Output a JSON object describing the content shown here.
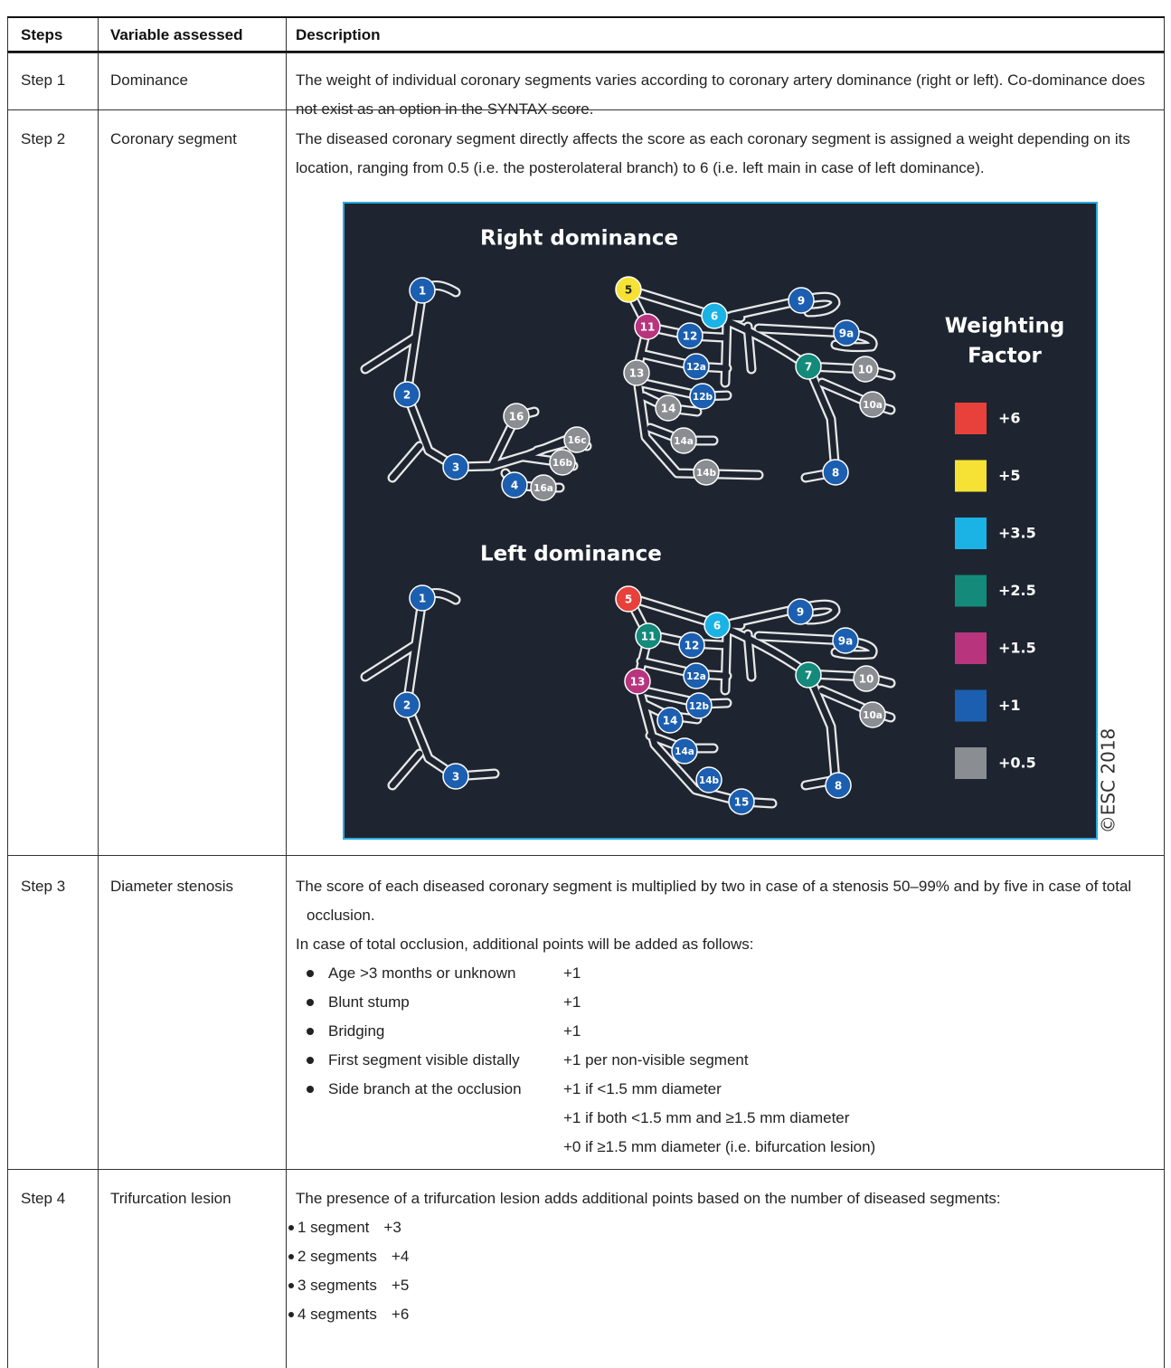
{
  "table": {
    "header": [
      "Steps",
      "Variable assessed",
      "Description"
    ],
    "rows": [
      {
        "step": "Step 1",
        "variable": "Dominance",
        "text": "The weight of individual coronary segments varies according to coronary artery dominance (right or left). Co-dominance does not exist as an option in the SYNTAX score."
      },
      {
        "step": "Step 2",
        "variable": "Coronary segment",
        "text": "The diseased coronary segment directly affects the score as each coronary segment is assigned a weight depending on its location, ranging from 0.5 (i.e. the posterolateral branch) to 6 (i.e. left main in case of left dominance)."
      },
      {
        "step": "Step 3",
        "variable": "Diameter stenosis",
        "text": "The score of each diseased coronary segment is multiplied by two in case of a stenosis 50–99% and by five in case of total occlusion.",
        "intro": "In case of total occlusion, additional points will be added as follows:",
        "items": [
          {
            "label": "Age >3 months or unknown",
            "points": [
              "+1"
            ]
          },
          {
            "label": "Blunt stump",
            "points": [
              "+1"
            ]
          },
          {
            "label": "Bridging",
            "points": [
              "+1"
            ]
          },
          {
            "label": "First segment visible distally",
            "points": [
              "+1 per non-visible segment"
            ]
          },
          {
            "label": "Side branch at the occlusion",
            "points": [
              "+1 if <1.5 mm diameter",
              "+1 if both <1.5 mm and ≥1.5 mm diameter",
              "+0 if ≥1.5 mm diameter (i.e. bifurcation lesion)"
            ]
          }
        ]
      },
      {
        "step": "Step 4",
        "variable": "Trifurcation lesion",
        "text": "The presence of a trifurcation lesion adds additional points based on the number of diseased segments:",
        "items": [
          {
            "label": "1 segment",
            "points": [
              "+3"
            ]
          },
          {
            "label": "2 segments",
            "points": [
              "+4"
            ]
          },
          {
            "label": "3 segments",
            "points": [
              "+5"
            ]
          },
          {
            "label": "4 segments",
            "points": [
              "+6"
            ]
          }
        ]
      }
    ]
  },
  "figure": {
    "panels": [
      {
        "title": "Right dominance",
        "nodes": [
          {
            "label": "1",
            "color": "#1c5fb0"
          },
          {
            "label": "2",
            "color": "#1c5fb0"
          },
          {
            "label": "3",
            "color": "#1c5fb0"
          },
          {
            "label": "4",
            "color": "#1c5fb0"
          },
          {
            "label": "16a",
            "color": "#8a8d91"
          },
          {
            "label": "16",
            "color": "#8a8d91"
          },
          {
            "label": "16b",
            "color": "#8a8d91"
          },
          {
            "label": "16c",
            "color": "#8a8d91"
          },
          {
            "label": "5",
            "color": "#f6e234"
          },
          {
            "label": "11",
            "color": "#b8357e"
          },
          {
            "label": "12",
            "color": "#1c5fb0"
          },
          {
            "label": "6",
            "color": "#1bb3e6"
          },
          {
            "label": "9",
            "color": "#1c5fb0"
          },
          {
            "label": "9a",
            "color": "#1c5fb0"
          },
          {
            "label": "7",
            "color": "#138a7a"
          },
          {
            "label": "10",
            "color": "#8a8d91"
          },
          {
            "label": "10a",
            "color": "#8a8d91"
          },
          {
            "label": "8",
            "color": "#1c5fb0"
          },
          {
            "label": "13",
            "color": "#8a8d91"
          },
          {
            "label": "12a",
            "color": "#1c5fb0"
          },
          {
            "label": "12b",
            "color": "#1c5fb0"
          },
          {
            "label": "14",
            "color": "#8a8d91"
          },
          {
            "label": "14a",
            "color": "#8a8d91"
          },
          {
            "label": "14b",
            "color": "#8a8d91"
          }
        ]
      },
      {
        "title": "Left dominance",
        "nodes": [
          {
            "label": "1",
            "color": "#1c5fb0"
          },
          {
            "label": "2",
            "color": "#1c5fb0"
          },
          {
            "label": "3",
            "color": "#1c5fb0"
          },
          {
            "label": "5",
            "color": "#e8403a"
          },
          {
            "label": "11",
            "color": "#138a7a"
          },
          {
            "label": "12",
            "color": "#1c5fb0"
          },
          {
            "label": "6",
            "color": "#1bb3e6"
          },
          {
            "label": "9",
            "color": "#1c5fb0"
          },
          {
            "label": "9a",
            "color": "#1c5fb0"
          },
          {
            "label": "7",
            "color": "#138a7a"
          },
          {
            "label": "10",
            "color": "#8a8d91"
          },
          {
            "label": "10a",
            "color": "#8a8d91"
          },
          {
            "label": "8",
            "color": "#1c5fb0"
          },
          {
            "label": "13",
            "color": "#b8357e"
          },
          {
            "label": "12a",
            "color": "#1c5fb0"
          },
          {
            "label": "12b",
            "color": "#1c5fb0"
          },
          {
            "label": "14",
            "color": "#1c5fb0"
          },
          {
            "label": "14a",
            "color": "#1c5fb0"
          },
          {
            "label": "14b",
            "color": "#1c5fb0"
          },
          {
            "label": "15",
            "color": "#1c5fb0"
          }
        ]
      }
    ],
    "legend": {
      "title": [
        "Weighting",
        "Factor"
      ],
      "items": [
        {
          "label": "+6",
          "color": "#e8403a"
        },
        {
          "label": "+5",
          "color": "#f6e234"
        },
        {
          "label": "+3.5",
          "color": "#1bb3e6"
        },
        {
          "label": "+2.5",
          "color": "#138a7a"
        },
        {
          "label": "+1.5",
          "color": "#b8357e"
        },
        {
          "label": "+1",
          "color": "#1c5fb0"
        },
        {
          "label": "+0.5",
          "color": "#8a8d91"
        }
      ]
    },
    "copyright": "©ESC 2018"
  }
}
